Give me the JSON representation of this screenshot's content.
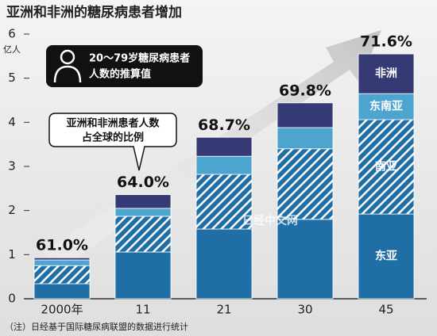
{
  "chart_data": {
    "type": "stacked-bar",
    "title": "亚洲和非洲的糖尿病患者增加",
    "y_unit": "亿人",
    "categories": [
      "2000年",
      "11",
      "21",
      "30",
      "45"
    ],
    "series": [
      {
        "name": "东亚",
        "color": "#1f6ea6",
        "values": [
          0.34,
          1.06,
          1.58,
          1.8,
          1.92
        ]
      },
      {
        "name": "南亚",
        "color": "#1f6ea6",
        "pattern": "hatch",
        "values": [
          0.41,
          0.81,
          1.24,
          1.6,
          2.14
        ]
      },
      {
        "name": "东南亚",
        "color": "#4da4cf",
        "values": [
          0.13,
          0.18,
          0.41,
          0.48,
          0.59
        ]
      },
      {
        "name": "非洲",
        "color": "#363a74",
        "values": [
          0.05,
          0.31,
          0.43,
          0.56,
          0.9
        ]
      }
    ],
    "share_values": [
      61.0,
      64.0,
      68.7,
      69.8,
      71.6
    ],
    "share_labels": [
      "61.0%",
      "64.0%",
      "68.7%",
      "69.8%",
      "71.6%"
    ],
    "ylim": [
      0,
      6
    ],
    "yticks": [
      0,
      1,
      2,
      3,
      4,
      5,
      6
    ],
    "legend_note": [
      "20〜79岁糖尿病患者",
      "人数的推算值"
    ],
    "callout": [
      "亚洲和非洲患者人数",
      "占全球的比例"
    ],
    "watermark": "日经中文网",
    "note": "（注）日经基于国际糖尿病联盟的数据进行统计"
  }
}
